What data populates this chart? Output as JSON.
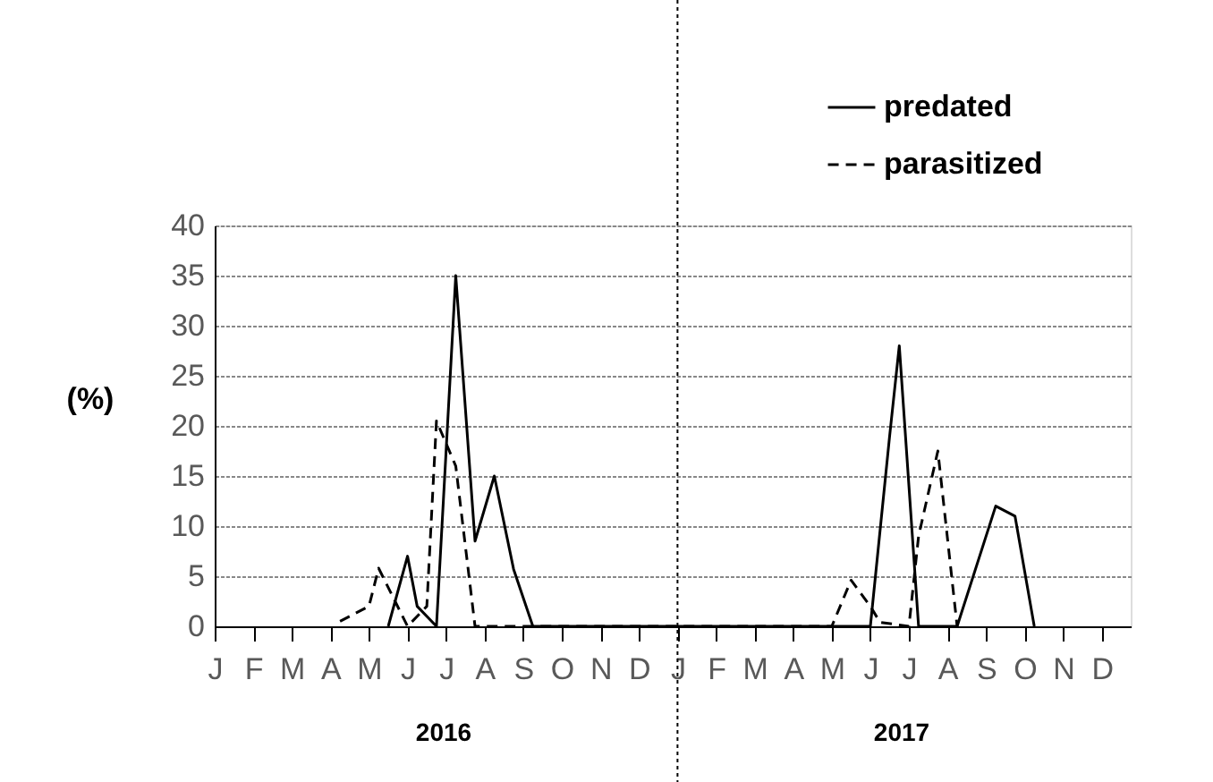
{
  "chart_data": {
    "type": "line",
    "ylabel": "(%)",
    "categories": [
      "J",
      null,
      null,
      null,
      "F",
      null,
      null,
      null,
      "M",
      null,
      null,
      null,
      "A",
      null,
      null,
      null,
      "M",
      null,
      null,
      null,
      "J",
      null,
      null,
      null,
      "J",
      null,
      null,
      null,
      "A",
      null,
      null,
      null,
      "S",
      null,
      null,
      null,
      "O",
      null,
      null,
      null,
      "N",
      null,
      null,
      null,
      "D",
      null,
      null,
      null,
      "J",
      null,
      null,
      null,
      "F",
      null,
      null,
      null,
      "M",
      null,
      null,
      null,
      "A",
      null,
      null,
      null,
      "M",
      null,
      null,
      null,
      "J",
      null,
      null,
      null,
      "J",
      null,
      null,
      null,
      "A",
      null,
      null,
      null,
      "S",
      null,
      null,
      null,
      "O",
      null,
      null,
      null,
      "N",
      null,
      null,
      null,
      "D",
      null,
      null,
      null
    ],
    "ylim": [
      0,
      40
    ],
    "yticks": [
      0,
      5,
      10,
      15,
      20,
      25,
      30,
      35,
      40
    ],
    "grid": "y",
    "legend": "top right",
    "series": [
      {
        "name": "predated",
        "color": "#000000",
        "line_style": "solid",
        "values": [
          null,
          null,
          null,
          null,
          null,
          null,
          null,
          null,
          null,
          null,
          null,
          null,
          null,
          null,
          null,
          null,
          null,
          null,
          0,
          null,
          7,
          2,
          null,
          0,
          null,
          35,
          null,
          8.5,
          null,
          15,
          null,
          5.7,
          null,
          0,
          null,
          null,
          null,
          null,
          null,
          null,
          null,
          null,
          null,
          null,
          null,
          null,
          null,
          null,
          null,
          null,
          null,
          null,
          null,
          null,
          null,
          null,
          null,
          null,
          null,
          null,
          null,
          null,
          null,
          null,
          null,
          null,
          null,
          null,
          0,
          null,
          19,
          28,
          null,
          0,
          null,
          null,
          null,
          0,
          null,
          null,
          null,
          12,
          null,
          11,
          null,
          0,
          null,
          null,
          null,
          null,
          null,
          null,
          null,
          null,
          null,
          null
        ]
      },
      {
        "name": "parasitized",
        "color": "#000000",
        "line_style": "dashed",
        "values": [
          null,
          null,
          null,
          null,
          null,
          null,
          null,
          null,
          null,
          null,
          null,
          null,
          null,
          0.5,
          null,
          null,
          2,
          5.8,
          null,
          null,
          0,
          null,
          2,
          20.5,
          null,
          16,
          null,
          0,
          null,
          null,
          null,
          null,
          null,
          null,
          null,
          null,
          null,
          null,
          null,
          null,
          null,
          null,
          null,
          null,
          null,
          null,
          null,
          null,
          null,
          null,
          null,
          null,
          null,
          null,
          null,
          null,
          null,
          null,
          null,
          null,
          null,
          null,
          null,
          null,
          0,
          null,
          4.6,
          null,
          2,
          0.4,
          null,
          null,
          0,
          9,
          null,
          17.5,
          null,
          0,
          null,
          null,
          null,
          null,
          null,
          null,
          null,
          null,
          null,
          null,
          null,
          null,
          null,
          null,
          null,
          null,
          null,
          null
        ]
      }
    ],
    "annotations": [
      "2016",
      "2017"
    ]
  }
}
